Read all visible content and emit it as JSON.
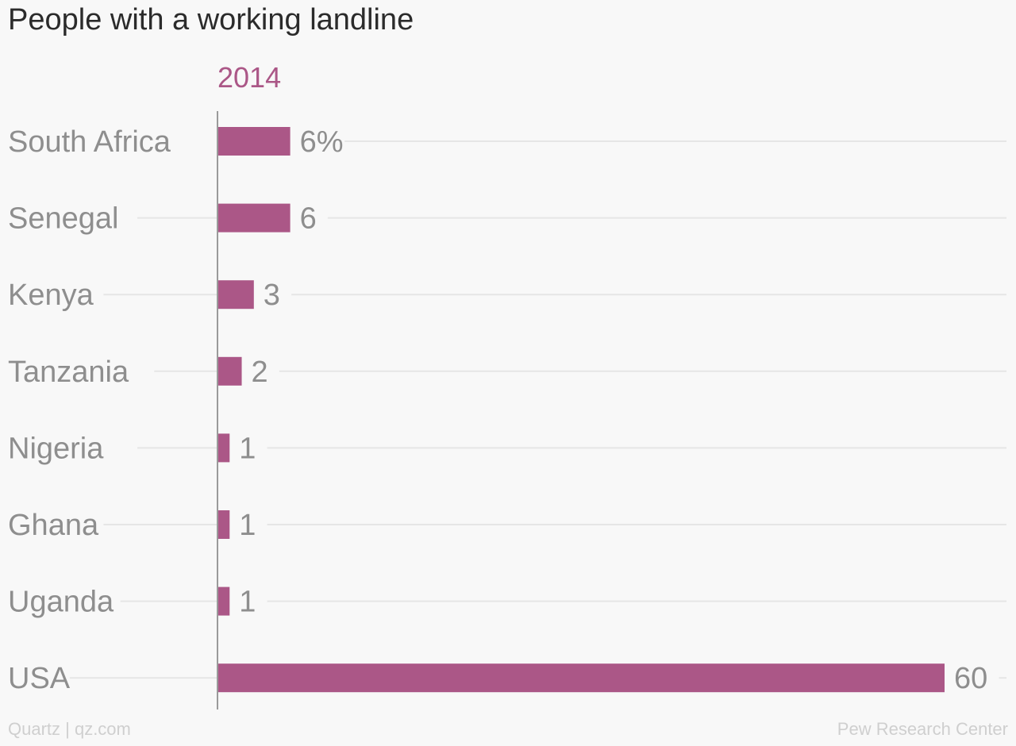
{
  "chart_data": {
    "type": "bar",
    "orientation": "horizontal",
    "title": "People with a working landline",
    "series_label": "2014",
    "categories": [
      "South Africa",
      "Senegal",
      "Kenya",
      "Tanzania",
      "Nigeria",
      "Ghana",
      "Uganda",
      "USA"
    ],
    "values": [
      6,
      6,
      3,
      2,
      1,
      1,
      1,
      60
    ],
    "value_labels": [
      "6%",
      "6",
      "3",
      "2",
      "1",
      "1",
      "1",
      "60"
    ],
    "unit": "%",
    "xlim": [
      0,
      60
    ],
    "grid": true
  },
  "footer": {
    "left": "Quartz | qz.com",
    "right": "Pew Research Center"
  },
  "colors": {
    "bar": "#ab5787",
    "series_label": "#ab5787",
    "category_label": "#8e8e8e",
    "value_label": "#8e8e8e",
    "gridline": "#e6e6e6",
    "axis": "#9a9a9a",
    "title": "#2b2b2b"
  }
}
